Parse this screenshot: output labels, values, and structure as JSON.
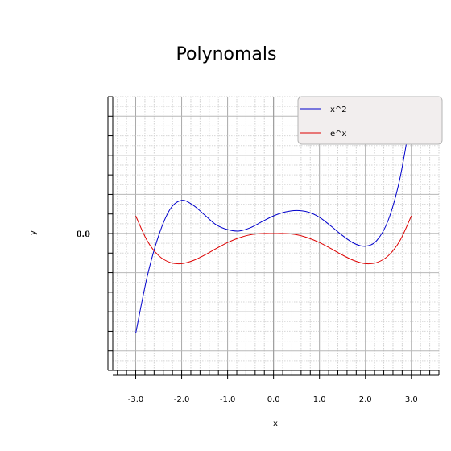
{
  "chart_data": {
    "type": "line",
    "title": "Polynomals",
    "xlabel": "x",
    "ylabel": "y",
    "xlim": [
      -3.5,
      3.6
    ],
    "ylim": [
      -7.0,
      7.0
    ],
    "x_ticks": [
      -3.0,
      -2.0,
      -1.0,
      0.0,
      1.0,
      2.0,
      3.0
    ],
    "x_tick_labels": [
      "-3.0",
      "-2.0",
      "-1.0",
      "0.0",
      "1.0",
      "2.0",
      "3.0"
    ],
    "y_ticks": [
      0.0
    ],
    "y_tick_labels": [
      "0.0"
    ],
    "grid": true,
    "legend_position": "top-right",
    "series": [
      {
        "name": "x^2",
        "color": "#0000cc",
        "style": "solid",
        "x": [
          -3.0,
          -2.75,
          -2.5,
          -2.25,
          -2.0,
          -1.75,
          -1.5,
          -1.25,
          -1.0,
          -0.75,
          -0.5,
          -0.25,
          0.0,
          0.25,
          0.5,
          0.75,
          1.0,
          1.25,
          1.5,
          1.75,
          2.0,
          2.25,
          2.5,
          2.75,
          3.0
        ],
        "y": [
          -5.1,
          -2.2,
          -0.1,
          1.25,
          1.7,
          1.45,
          0.95,
          0.45,
          0.2,
          0.13,
          0.3,
          0.61,
          0.9,
          1.1,
          1.18,
          1.1,
          0.83,
          0.38,
          -0.1,
          -0.5,
          -0.65,
          -0.35,
          0.7,
          2.8,
          6.1
        ]
      },
      {
        "name": "e^x",
        "color": "#dd0000",
        "style": "solid",
        "x": [
          -3.0,
          -2.75,
          -2.5,
          -2.25,
          -2.0,
          -1.75,
          -1.5,
          -1.25,
          -1.0,
          -0.75,
          -0.5,
          -0.25,
          0.0,
          0.25,
          0.5,
          0.75,
          1.0,
          1.25,
          1.5,
          1.75,
          2.0,
          2.25,
          2.5,
          2.75,
          3.0
        ],
        "y": [
          0.9,
          -0.37,
          -1.13,
          -1.48,
          -1.54,
          -1.38,
          -1.1,
          -0.77,
          -0.46,
          -0.22,
          -0.06,
          0.0,
          0.0,
          0.0,
          -0.06,
          -0.22,
          -0.46,
          -0.77,
          -1.1,
          -1.38,
          -1.54,
          -1.48,
          -1.13,
          -0.37,
          0.9
        ]
      }
    ]
  }
}
